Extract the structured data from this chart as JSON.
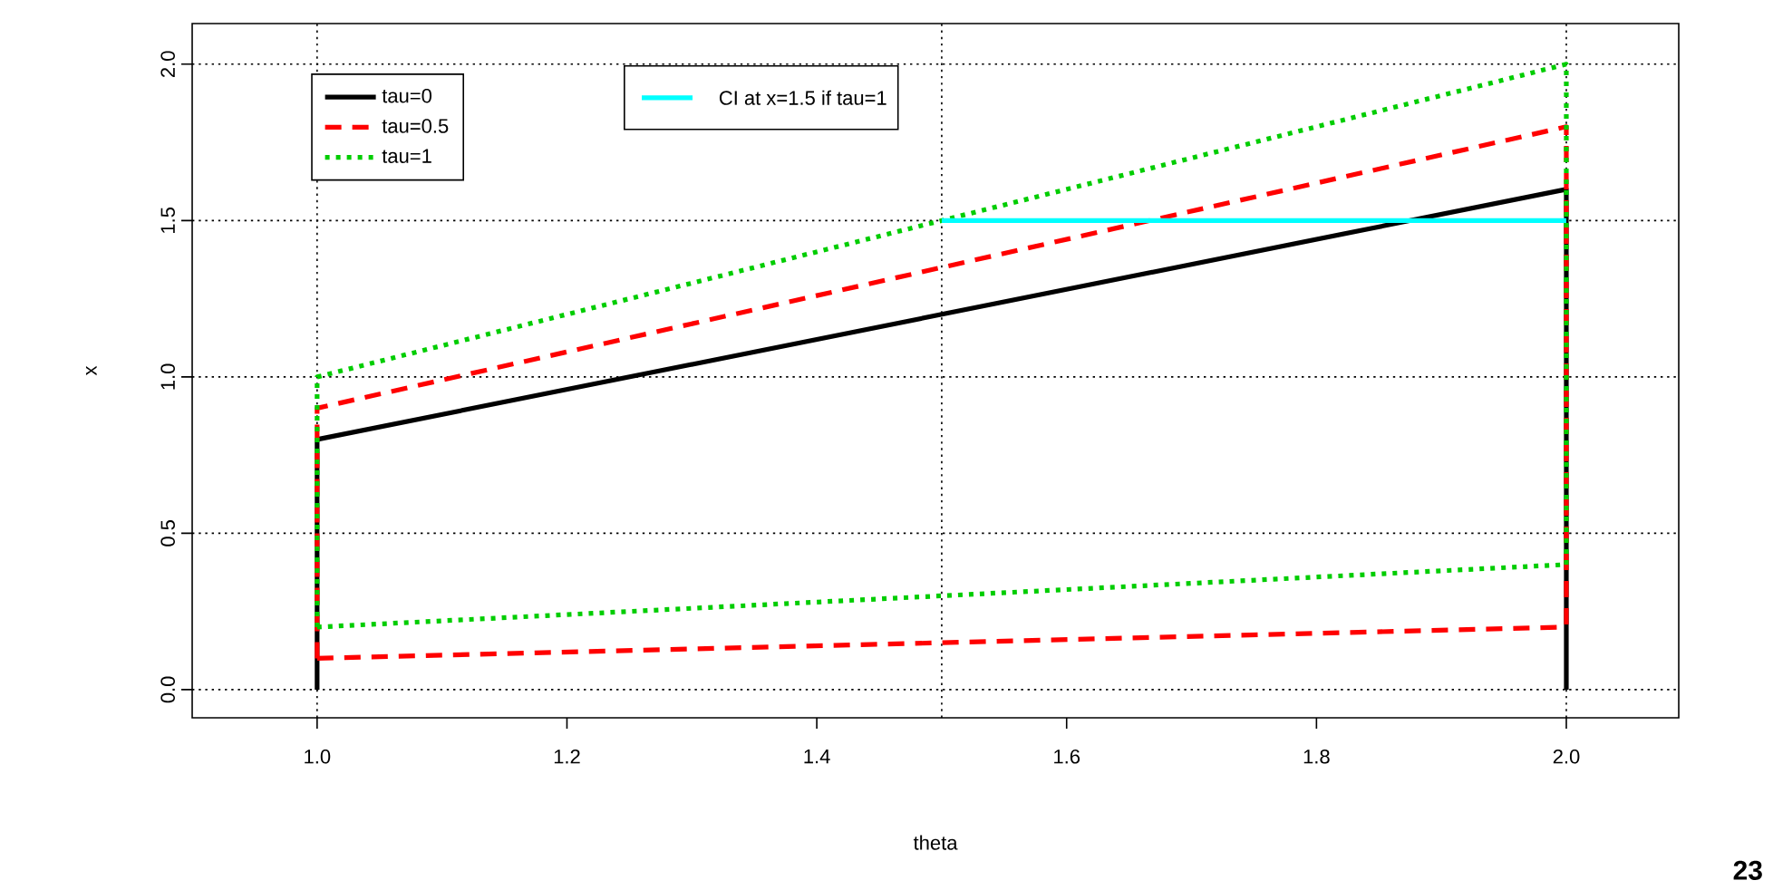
{
  "chart_data": {
    "type": "line",
    "xlabel": "theta",
    "ylabel": "x",
    "xlim": [
      0.9,
      2.09
    ],
    "ylim": [
      -0.09,
      2.13
    ],
    "xticks": [
      {
        "value": 1,
        "label": "1.0"
      },
      {
        "value": 1.2,
        "label": "1.2"
      },
      {
        "value": 1.4,
        "label": "1.4"
      },
      {
        "value": 1.6,
        "label": "1.6"
      },
      {
        "value": 1.8,
        "label": "1.8"
      },
      {
        "value": 2,
        "label": "2.0"
      }
    ],
    "yticks": [
      {
        "value": 0,
        "label": "0.0"
      },
      {
        "value": 0.5,
        "label": "0.5"
      },
      {
        "value": 1,
        "label": "1.0"
      },
      {
        "value": 1.5,
        "label": "1.5"
      },
      {
        "value": 2,
        "label": "2.0"
      }
    ],
    "legend": "top left",
    "series": [
      {
        "name": "tau=0",
        "color": "#000000",
        "line_style": "solid",
        "x": [
          1,
          1,
          2,
          2
        ],
        "values": [
          0,
          0.8,
          1.6,
          0
        ]
      },
      {
        "name": "tau=0.5",
        "color": "#ff0000",
        "line_style": "dashed",
        "x": [
          1,
          1,
          2,
          2
        ],
        "values": [
          0.1,
          0.9,
          1.8,
          0.2
        ]
      },
      {
        "color": "#ff0000",
        "line_style": "dashed",
        "x": [
          1,
          2
        ],
        "values": [
          0.1,
          0.2
        ]
      },
      {
        "name": "tau=1",
        "color": "#00cd00",
        "line_style": "dotted",
        "x": [
          1,
          1,
          2,
          2
        ],
        "values": [
          0.2,
          1,
          2,
          0.4
        ]
      },
      {
        "color": "#00cd00",
        "line_style": "dotted",
        "x": [
          1,
          2
        ],
        "values": [
          0.2,
          0.4
        ]
      },
      {
        "name": "CI at x=1.5 if tau=1",
        "color": "#00ffff",
        "line_style": "solid",
        "x": [
          1.5,
          2
        ],
        "values": [
          1.5,
          1.5
        ]
      }
    ],
    "ref_lines": [
      {
        "axis": "x",
        "value": 1,
        "color": "#000000",
        "line_style": "dotted"
      },
      {
        "axis": "x",
        "value": 1.5,
        "color": "#000000",
        "line_style": "dotted"
      },
      {
        "axis": "x",
        "value": 2,
        "color": "#000000",
        "line_style": "dotted"
      },
      {
        "axis": "y",
        "value": 0,
        "color": "#000000",
        "line_style": "dotted"
      },
      {
        "axis": "y",
        "value": 0.5,
        "color": "#000000",
        "line_style": "dotted"
      },
      {
        "axis": "y",
        "value": 1,
        "color": "#000000",
        "line_style": "dotted"
      },
      {
        "axis": "y",
        "value": 1.5,
        "color": "#000000",
        "line_style": "dotted"
      },
      {
        "axis": "y",
        "value": 2,
        "color": "#000000",
        "line_style": "dotted"
      }
    ],
    "annotations": [
      "23"
    ]
  }
}
